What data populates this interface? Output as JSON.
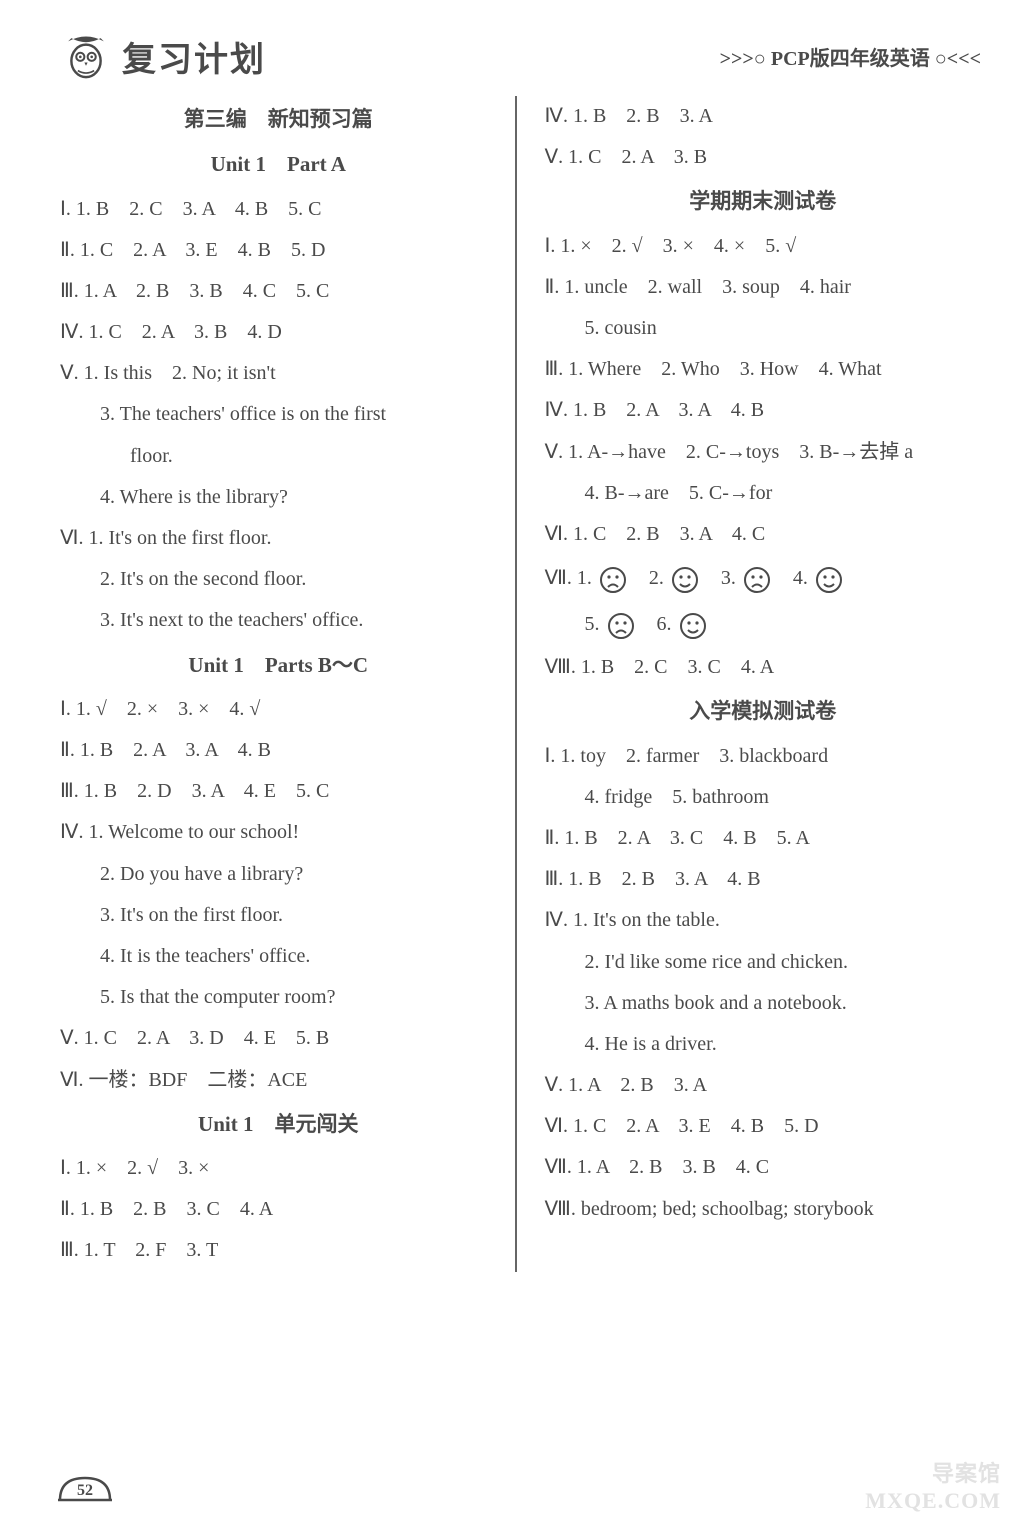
{
  "header": {
    "brand": "复习计划",
    "subhead": ">>>○ PCP版四年级英语 ○<<<"
  },
  "left": {
    "section3": "第三编　新知预习篇",
    "u1a_title": "Unit 1　Part A",
    "u1a_I": "Ⅰ. 1. B　2. C　3. A　4. B　5. C",
    "u1a_II": "Ⅱ. 1. C　2. A　3. E　4. B　5. D",
    "u1a_III": "Ⅲ. 1. A　2. B　3. B　4. C　5. C",
    "u1a_IV": "Ⅳ. 1. C　2. A　3. B　4. D",
    "u1a_V1": "Ⅴ. 1. Is this　2. No; it isn't",
    "u1a_V3a": "3. The teachers' office is on the first",
    "u1a_V3b": "floor.",
    "u1a_V4": "4. Where is the library?",
    "u1a_VI1": "Ⅵ. 1. It's on the first floor.",
    "u1a_VI2": "2. It's on the second floor.",
    "u1a_VI3": "3. It's next to the teachers' office.",
    "u1bc_title": "Unit 1　Parts B～C",
    "u1bc_I": "Ⅰ. 1. √　2. ×　3. ×　4. √",
    "u1bc_II": "Ⅱ. 1. B　2. A　3. A　4. B",
    "u1bc_III": "Ⅲ. 1. B　2. D　3. A　4. E　5. C",
    "u1bc_IV1": "Ⅳ. 1. Welcome to our school!",
    "u1bc_IV2": "2. Do you have a library?",
    "u1bc_IV3": "3. It's on the first floor.",
    "u1bc_IV4": "4. It is the teachers' office.",
    "u1bc_IV5": "5. Is that the computer room?",
    "u1bc_V": "Ⅴ. 1. C　2. A　3. D　4. E　5. B",
    "u1bc_VI": "Ⅵ. 一楼：BDF　二楼：ACE",
    "u1cg_title": "Unit 1　单元闯关",
    "u1cg_I": "Ⅰ. 1. ×　2. √　3. ×",
    "u1cg_II": "Ⅱ. 1. B　2. B　3. C　4. A",
    "u1cg_III": "Ⅲ. 1. T　2. F　3. T"
  },
  "right": {
    "u1cg_IV": "Ⅳ. 1. B　2. B　3. A",
    "u1cg_V": "Ⅴ. 1. C　2. A　3. B",
    "final_title": "学期期末测试卷",
    "f_I": "Ⅰ. 1. ×　2. √　3. ×　4. ×　5. √",
    "f_II_a": "Ⅱ. 1. uncle　2. wall　3. soup　4. hair",
    "f_II_b": "5. cousin",
    "f_III": "Ⅲ. 1. Where　2. Who　3. How　4. What",
    "f_IV": "Ⅳ. 1. B　2. A　3. A　4. B",
    "f_V_a": "Ⅴ. 1. A-→have　2. C-→toys　3. B-→去掉 a",
    "f_V_b": "4. B-→are　5. C-→for",
    "f_VI": "Ⅵ. 1. C　2. B　3. A　4. C",
    "f_VII_label": "Ⅶ. ",
    "f_VII_items": [
      "sad",
      "happy",
      "sad",
      "happy",
      "sad",
      "happy"
    ],
    "f_VIII": "Ⅷ. 1. B　2. C　3. C　4. A",
    "entry_title": "入学模拟测试卷",
    "e_I_a": "Ⅰ. 1. toy　2. farmer　3. blackboard",
    "e_I_b": "4. fridge　5. bathroom",
    "e_II": "Ⅱ. 1. B　2. A　3. C　4. B　5. A",
    "e_III": "Ⅲ. 1. B　2. B　3. A　4. B",
    "e_IV1": "Ⅳ. 1. It's on the table.",
    "e_IV2": "2. I'd like some rice and chicken.",
    "e_IV3": "3. A maths book and a notebook.",
    "e_IV4": "4. He is a driver.",
    "e_V": "Ⅴ. 1. A　2. B　3. A",
    "e_VI": "Ⅵ. 1. C　2. A　3. E　4. B　5. D",
    "e_VII": "Ⅶ. 1. A　2. B　3. B　4. C",
    "e_VIII": "Ⅷ. bedroom; bed; schoolbag; storybook"
  },
  "page": "52",
  "watermark_top": "导案馆",
  "watermark_bottom": "MXQE.COM",
  "colors": {
    "text": "#4a4a4a",
    "divider": "#666666",
    "watermark": "#e2e2e2",
    "background": "#ffffff"
  },
  "face_svg": {
    "stroke": "#4a4a4a",
    "fill": "none",
    "size": 28
  }
}
